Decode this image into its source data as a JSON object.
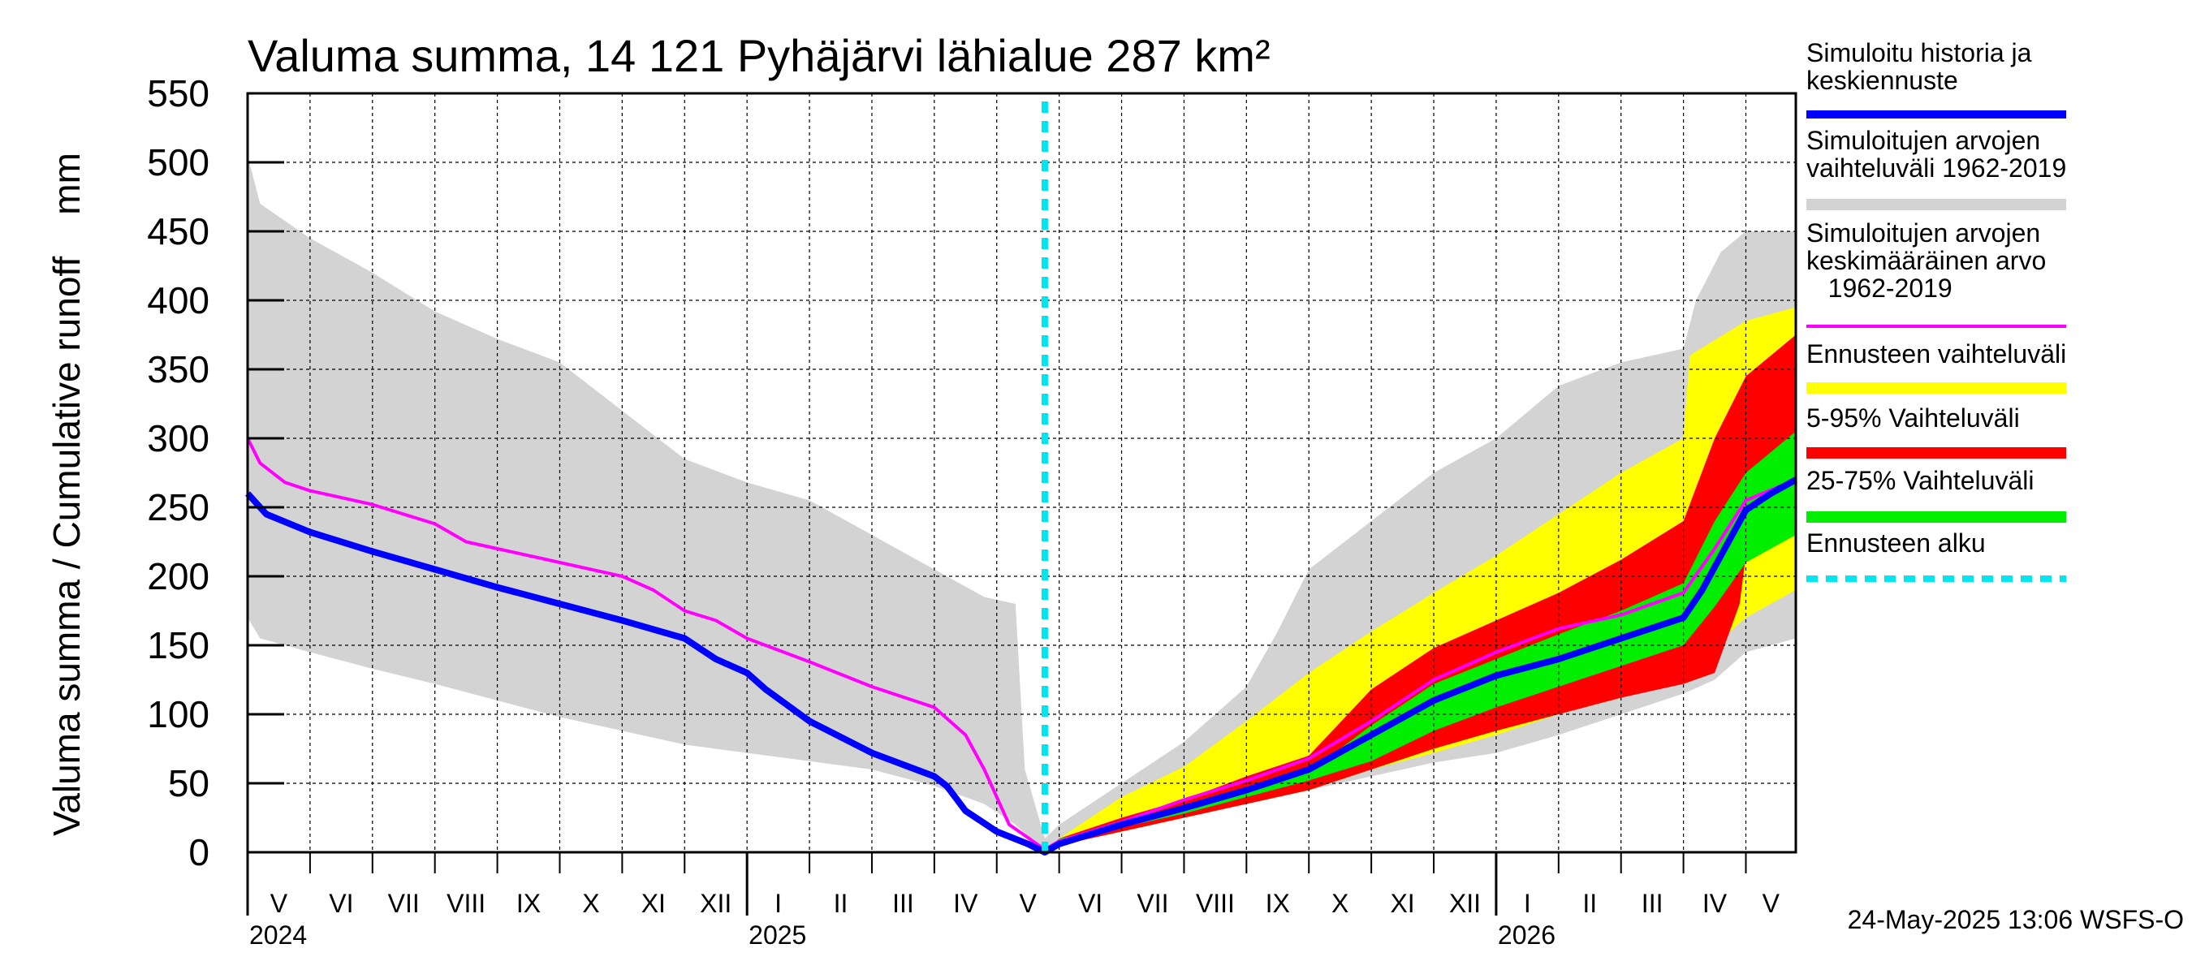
{
  "chart_data": {
    "type": "area",
    "title": "Valuma summa, 14 121 Pyhäjärvi lähialue 287 km²",
    "ylabel": "Valuma summa / Cumulative runoff    mm",
    "ylim": [
      0,
      550
    ],
    "yticks": [
      "0",
      "50",
      "100",
      "150",
      "200",
      "250",
      "300",
      "350",
      "400",
      "450",
      "500",
      "550"
    ],
    "x_unit": "months since 1 May 2024",
    "xlim": [
      0,
      24.8
    ],
    "months": [
      {
        "label": "V",
        "start": 0
      },
      {
        "label": "VI",
        "start": 1
      },
      {
        "label": "VII",
        "start": 2
      },
      {
        "label": "VIII",
        "start": 3
      },
      {
        "label": "IX",
        "start": 4
      },
      {
        "label": "X",
        "start": 5
      },
      {
        "label": "XI",
        "start": 6
      },
      {
        "label": "XII",
        "start": 7
      },
      {
        "label": "I",
        "start": 8
      },
      {
        "label": "II",
        "start": 9
      },
      {
        "label": "III",
        "start": 10
      },
      {
        "label": "IV",
        "start": 11
      },
      {
        "label": "V",
        "start": 12
      },
      {
        "label": "VI",
        "start": 13
      },
      {
        "label": "VII",
        "start": 14
      },
      {
        "label": "VIII",
        "start": 15
      },
      {
        "label": "IX",
        "start": 16
      },
      {
        "label": "X",
        "start": 17
      },
      {
        "label": "XI",
        "start": 18
      },
      {
        "label": "XII",
        "start": 19
      },
      {
        "label": "I",
        "start": 20
      },
      {
        "label": "II",
        "start": 21
      },
      {
        "label": "III",
        "start": 22
      },
      {
        "label": "IV",
        "start": 23
      },
      {
        "label": "V",
        "start": 24
      }
    ],
    "years": [
      {
        "label": "2024",
        "start": 0
      },
      {
        "label": "2025",
        "start": 8
      },
      {
        "label": "2026",
        "start": 20
      }
    ],
    "forecast_start": 12.77,
    "series": [
      {
        "name": "Simuloitujen arvojen vaihteluväli 1962-2019",
        "kind": "band",
        "color": "#d3d3d3",
        "upper": [
          [
            0,
            505
          ],
          [
            0.2,
            470
          ],
          [
            1,
            445
          ],
          [
            2,
            420
          ],
          [
            3,
            392
          ],
          [
            4,
            372
          ],
          [
            5,
            355
          ],
          [
            6,
            320
          ],
          [
            7,
            285
          ],
          [
            8,
            268
          ],
          [
            9,
            255
          ],
          [
            10,
            230
          ],
          [
            11,
            205
          ],
          [
            11.8,
            185
          ],
          [
            12.3,
            180
          ],
          [
            12.45,
            60
          ],
          [
            12.77,
            10
          ],
          [
            13,
            20
          ],
          [
            14,
            50
          ],
          [
            15,
            80
          ],
          [
            16,
            120
          ],
          [
            16.5,
            160
          ],
          [
            17,
            205
          ],
          [
            18,
            240
          ],
          [
            19,
            275
          ],
          [
            20,
            300
          ],
          [
            21,
            338
          ],
          [
            22,
            355
          ],
          [
            23,
            365
          ],
          [
            23.2,
            400
          ],
          [
            23.6,
            435
          ],
          [
            24,
            450
          ],
          [
            24.8,
            450
          ]
        ],
        "lower": [
          [
            0,
            170
          ],
          [
            0.2,
            155
          ],
          [
            1,
            145
          ],
          [
            2,
            133
          ],
          [
            3,
            122
          ],
          [
            4,
            110
          ],
          [
            5,
            98
          ],
          [
            6,
            88
          ],
          [
            7,
            78
          ],
          [
            8,
            72
          ],
          [
            9,
            66
          ],
          [
            10,
            60
          ],
          [
            11,
            48
          ],
          [
            11.8,
            35
          ],
          [
            12.3,
            20
          ],
          [
            12.77,
            0
          ],
          [
            13,
            5
          ],
          [
            14,
            15
          ],
          [
            15,
            25
          ],
          [
            16,
            35
          ],
          [
            17,
            45
          ],
          [
            18,
            55
          ],
          [
            19,
            65
          ],
          [
            20,
            72
          ],
          [
            21,
            85
          ],
          [
            22,
            100
          ],
          [
            23,
            115
          ],
          [
            23.5,
            125
          ],
          [
            24,
            145
          ],
          [
            24.8,
            155
          ]
        ]
      },
      {
        "name": "Ennusteen vaihteluväli",
        "kind": "band",
        "color": "#ffff00",
        "upper": [
          [
            12.77,
            0
          ],
          [
            13,
            10
          ],
          [
            14,
            40
          ],
          [
            15,
            62
          ],
          [
            16,
            95
          ],
          [
            17,
            130
          ],
          [
            18,
            160
          ],
          [
            19,
            188
          ],
          [
            20,
            215
          ],
          [
            21,
            245
          ],
          [
            22,
            275
          ],
          [
            23,
            300
          ],
          [
            23.1,
            360
          ],
          [
            24,
            385
          ],
          [
            24.8,
            395
          ]
        ],
        "lower": [
          [
            12.77,
            0
          ],
          [
            13,
            5
          ],
          [
            14,
            15
          ],
          [
            15,
            25
          ],
          [
            16,
            35
          ],
          [
            17,
            45
          ],
          [
            18,
            60
          ],
          [
            19,
            72
          ],
          [
            20,
            85
          ],
          [
            21,
            100
          ],
          [
            22,
            112
          ],
          [
            23,
            125
          ],
          [
            23.5,
            150
          ],
          [
            24,
            170
          ],
          [
            24.8,
            190
          ]
        ]
      },
      {
        "name": "5-95% Vaihteluväli",
        "kind": "band",
        "color": "#ff0000",
        "upper": [
          [
            12.77,
            0
          ],
          [
            13,
            10
          ],
          [
            14,
            25
          ],
          [
            15,
            38
          ],
          [
            16,
            55
          ],
          [
            17,
            70
          ],
          [
            18,
            118
          ],
          [
            19,
            148
          ],
          [
            20,
            168
          ],
          [
            21,
            188
          ],
          [
            22,
            212
          ],
          [
            23,
            240
          ],
          [
            23.5,
            300
          ],
          [
            24,
            345
          ],
          [
            24.8,
            375
          ]
        ],
        "lower": [
          [
            12.77,
            0
          ],
          [
            13,
            5
          ],
          [
            14,
            15
          ],
          [
            15,
            25
          ],
          [
            16,
            35
          ],
          [
            17,
            45
          ],
          [
            18,
            60
          ],
          [
            19,
            75
          ],
          [
            20,
            88
          ],
          [
            21,
            100
          ],
          [
            22,
            112
          ],
          [
            23,
            122
          ],
          [
            23.5,
            130
          ],
          [
            23.9,
            180
          ],
          [
            24,
            215
          ],
          [
            24.8,
            245
          ]
        ]
      },
      {
        "name": "25-75% Vaihteluväli",
        "kind": "band",
        "color": "#00ee00",
        "upper": [
          [
            12.77,
            0
          ],
          [
            13,
            10
          ],
          [
            14,
            20
          ],
          [
            15,
            34
          ],
          [
            16,
            46
          ],
          [
            17,
            58
          ],
          [
            18,
            92
          ],
          [
            19,
            122
          ],
          [
            20,
            140
          ],
          [
            21,
            158
          ],
          [
            22,
            175
          ],
          [
            23,
            195
          ],
          [
            23.5,
            240
          ],
          [
            24,
            275
          ],
          [
            24.8,
            305
          ]
        ],
        "lower": [
          [
            12.77,
            0
          ],
          [
            13,
            6
          ],
          [
            14,
            18
          ],
          [
            15,
            28
          ],
          [
            16,
            40
          ],
          [
            17,
            52
          ],
          [
            18,
            66
          ],
          [
            19,
            88
          ],
          [
            20,
            105
          ],
          [
            21,
            120
          ],
          [
            22,
            135
          ],
          [
            23,
            150
          ],
          [
            23.5,
            178
          ],
          [
            24,
            210
          ],
          [
            24.8,
            230
          ]
        ]
      },
      {
        "name": "Simuloitujen arvojen keskimääräinen arvo 1962-2019",
        "kind": "line",
        "color": "#ff00ff",
        "width": 4,
        "points": [
          [
            0,
            300
          ],
          [
            0.2,
            282
          ],
          [
            0.6,
            268
          ],
          [
            1,
            262
          ],
          [
            2,
            252
          ],
          [
            3,
            238
          ],
          [
            3.5,
            225
          ],
          [
            4,
            220
          ],
          [
            5,
            210
          ],
          [
            6,
            200
          ],
          [
            6.5,
            190
          ],
          [
            7,
            175
          ],
          [
            7.5,
            168
          ],
          [
            8,
            155
          ],
          [
            9,
            138
          ],
          [
            10,
            120
          ],
          [
            11,
            105
          ],
          [
            11.5,
            85
          ],
          [
            11.8,
            60
          ],
          [
            12.2,
            20
          ],
          [
            12.77,
            2
          ],
          [
            13,
            8
          ],
          [
            14,
            22
          ],
          [
            15,
            38
          ],
          [
            16,
            52
          ],
          [
            17,
            68
          ],
          [
            18,
            95
          ],
          [
            19,
            125
          ],
          [
            20,
            145
          ],
          [
            21,
            162
          ],
          [
            22,
            172
          ],
          [
            23,
            188
          ],
          [
            23.5,
            220
          ],
          [
            24,
            255
          ],
          [
            24.8,
            270
          ]
        ]
      },
      {
        "name": "Simuloitu historia ja keskiennuste",
        "kind": "line",
        "color": "#0000ff",
        "width": 8,
        "points": [
          [
            0,
            260
          ],
          [
            0.3,
            245
          ],
          [
            1,
            232
          ],
          [
            2,
            218
          ],
          [
            3,
            205
          ],
          [
            4,
            192
          ],
          [
            5,
            180
          ],
          [
            6,
            168
          ],
          [
            7,
            155
          ],
          [
            7.5,
            140
          ],
          [
            8,
            130
          ],
          [
            8.3,
            118
          ],
          [
            9,
            95
          ],
          [
            10,
            72
          ],
          [
            11,
            55
          ],
          [
            11.2,
            48
          ],
          [
            11.5,
            30
          ],
          [
            12,
            15
          ],
          [
            12.5,
            6
          ],
          [
            12.77,
            0
          ],
          [
            13,
            6
          ],
          [
            14,
            20
          ],
          [
            15,
            32
          ],
          [
            16,
            45
          ],
          [
            17,
            60
          ],
          [
            18,
            85
          ],
          [
            19,
            110
          ],
          [
            20,
            128
          ],
          [
            21,
            140
          ],
          [
            22,
            155
          ],
          [
            23,
            170
          ],
          [
            23.3,
            190
          ],
          [
            23.6,
            215
          ],
          [
            24,
            248
          ],
          [
            24.4,
            260
          ],
          [
            24.8,
            270
          ]
        ]
      }
    ],
    "legend": [
      {
        "label": "Simuloitu historia ja keskiennuste",
        "color": "#0000ff",
        "style": "solid"
      },
      {
        "label": "Simuloitujen arvojen vaihteluväli 1962-2019",
        "color": "#d3d3d3",
        "style": "solid"
      },
      {
        "label": "Simuloitujen arvojen keskimääräinen arvo 1962-2019",
        "color": "#ff00ff",
        "style": "solid"
      },
      {
        "label": "Ennusteen vaihteluväli",
        "color": "#ffff00",
        "style": "solid"
      },
      {
        "label": "5-95% Vaihteluväli",
        "color": "#ff0000",
        "style": "solid"
      },
      {
        "label": "25-75% Vaihteluväli",
        "color": "#00ee00",
        "style": "solid"
      },
      {
        "label": "Ennusteen alku",
        "color": "#00e5ee",
        "style": "dashed"
      }
    ],
    "timestamp": "24-May-2025 13:06 WSFS-O"
  }
}
